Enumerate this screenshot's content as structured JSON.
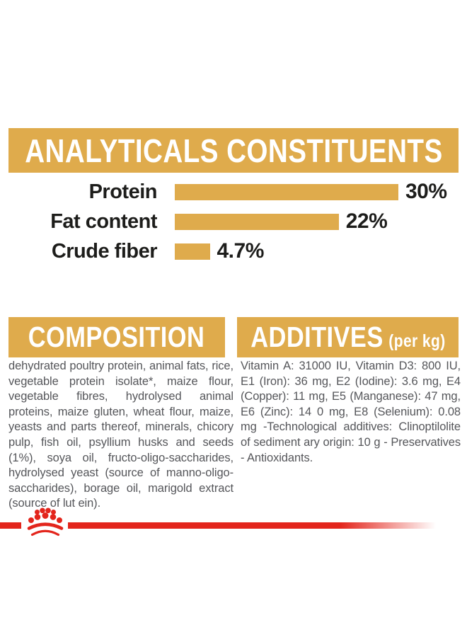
{
  "colors": {
    "gold": "#DFAB4C",
    "red": "#E3251C",
    "heading_text": "#FFFFFF",
    "chart_text": "#1D1D1B",
    "body_text": "#55565A",
    "background": "#FFFFFF"
  },
  "sections": {
    "analyticals": {
      "title": "ANALYTICALS CONSTITUENTS"
    },
    "composition": {
      "title": "COMPOSITION",
      "body": "dehydrated poultry protein, animal fats, rice, vegetable protein isolate*, maize flour, vegetable fibres, hydrolysed animal proteins, maize gluten, wheat flour, maize, yeasts and parts thereof, minerals, chicory pulp, fish oil, psyllium husks and seeds (1%), soya oil, fructo-oligo-saccharides, hydrolysed yeast (source of manno-oligo-saccharides), borage oil, marigold extract (source of lut ein)."
    },
    "additives": {
      "title": "ADDITIVES",
      "unit": "(per kg)",
      "body": "Vitamin A: 31000 IU, Vitamin D3: 800 IU, E1 (Iron): 36 mg, E2 (Iodine): 3.6 mg, E4 (Copper): 11 mg, E5 (Manganese): 47 mg, E6 (Zinc): 14 0 mg, E8 (Selenium): 0.08 mg -Technological additives: Clinoptilolite of sediment ary origin: 10 g - Preservatives - Antioxidants."
    }
  },
  "chart_data": {
    "type": "bar",
    "orientation": "horizontal",
    "title": "ANALYTICALS CONSTITUENTS",
    "categories": [
      "Protein",
      "Fat content",
      "Crude fiber"
    ],
    "values": [
      30,
      22,
      4.7
    ],
    "value_labels": [
      "30%",
      "22%",
      "4.7%"
    ],
    "xlim": [
      0,
      30
    ],
    "bar_color": "#DFAB4C",
    "grid": false,
    "legend": false
  },
  "footer": {
    "logo": "royal-canin-crown"
  }
}
